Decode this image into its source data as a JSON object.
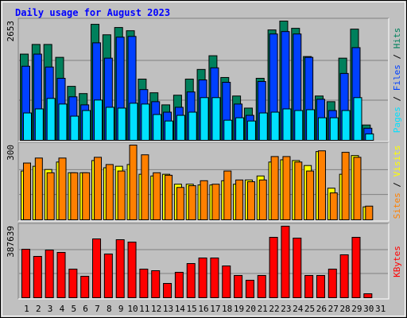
{
  "chart_data": [
    {
      "type": "bar",
      "title": "Daily usage for August 2023",
      "ylim": [
        0,
        2653
      ],
      "grid_divisions": 3,
      "legend_separator": "/",
      "series": [
        {
          "name": "Hits",
          "color": "#00805c",
          "values": [
            1918,
            2133,
            2133,
            1846,
            1201,
            1040,
            2581,
            2348,
            2510,
            2438,
            1362,
            1058,
            789,
            1004,
            1362,
            1577,
            1882,
            1398,
            986,
            717,
            1380,
            2456,
            2653,
            2492,
            1864,
            986,
            860,
            1828,
            2474,
            341,
            0
          ]
        },
        {
          "name": "Files",
          "color": "#0040ff",
          "values": [
            1649,
            1918,
            1631,
            1380,
            968,
            789,
            2169,
            1828,
            2295,
            2312,
            1129,
            860,
            627,
            735,
            1076,
            1344,
            1613,
            1291,
            807,
            556,
            1309,
            2366,
            2420,
            2366,
            1846,
            914,
            663,
            1488,
            2062,
            269,
            0
          ]
        },
        {
          "name": "Pages",
          "color": "#00e0ff",
          "values": [
            609,
            699,
            932,
            807,
            538,
            663,
            896,
            735,
            717,
            825,
            807,
            574,
            430,
            556,
            627,
            950,
            950,
            448,
            502,
            430,
            609,
            627,
            699,
            663,
            681,
            502,
            502,
            663,
            950,
            143,
            0
          ]
        }
      ]
    },
    {
      "type": "bar",
      "ylim": [
        0,
        300
      ],
      "grid_divisions": 3,
      "legend_separator": "/",
      "series": [
        {
          "name": "Visits",
          "color": "#ffff00",
          "values": [
            196,
            215,
            202,
            232,
            189,
            189,
            238,
            209,
            215,
            222,
            183,
            176,
            183,
            143,
            143,
            140,
            140,
            157,
            143,
            160,
            176,
            232,
            241,
            238,
            218,
            274,
            127,
            183,
            258,
            52,
            0
          ]
        },
        {
          "name": "Sites",
          "color": "#ff8000",
          "values": [
            228,
            248,
            189,
            248,
            189,
            189,
            251,
            222,
            196,
            300,
            261,
            189,
            179,
            130,
            137,
            157,
            143,
            196,
            160,
            153,
            160,
            254,
            254,
            232,
            196,
            277,
            108,
            271,
            251,
            55,
            0
          ]
        }
      ]
    },
    {
      "type": "bar",
      "ylim": [
        0,
        387639
      ],
      "grid_divisions": 3,
      "categories": [
        "1",
        "2",
        "3",
        "4",
        "5",
        "6",
        "7",
        "8",
        "9",
        "10",
        "11",
        "12",
        "13",
        "14",
        "15",
        "16",
        "17",
        "18",
        "19",
        "20",
        "21",
        "22",
        "23",
        "24",
        "25",
        "26",
        "27",
        "28",
        "29",
        "30",
        "31"
      ],
      "category_colors": [
        "#000000",
        "#000000",
        "#000000",
        "#000000",
        "#00805c",
        "#00805c",
        "#000000",
        "#000000",
        "#000000",
        "#000000",
        "#000000",
        "#00805c",
        "#00805c",
        "#000000",
        "#000000",
        "#000000",
        "#000000",
        "#000000",
        "#00805c",
        "#00805c",
        "#000000",
        "#000000",
        "#000000",
        "#000000",
        "#000000",
        "#00805c",
        "#00805c",
        "#000000",
        "#000000",
        "#000000",
        "#000000"
      ],
      "series": [
        {
          "name": "KBytes",
          "color": "#ff0000",
          "values": [
            262733,
            223969,
            258426,
            245505,
            155056,
            116292,
            318725,
            236891,
            314418,
            301497,
            155056,
            146441,
            77528,
            137827,
            185205,
            215355,
            215355,
            172284,
            120599,
            94756,
            120599,
            327340,
            387639,
            323033,
            120599,
            120599,
            155056,
            232583,
            327340,
            21536,
            0
          ]
        }
      ]
    }
  ]
}
